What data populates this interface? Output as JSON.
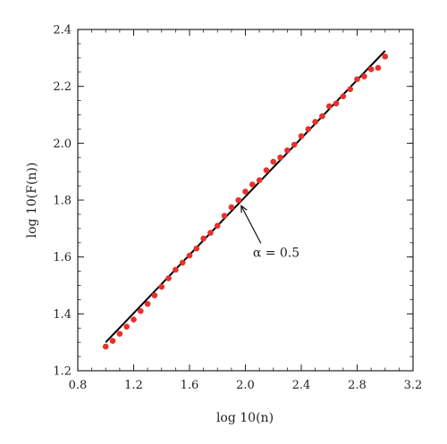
{
  "chart_data": {
    "type": "scatter",
    "title": "",
    "xlabel": "log 10(n)",
    "ylabel": "log 10(F(n))",
    "xlim": [
      0.8,
      3.2
    ],
    "ylim": [
      1.2,
      2.4
    ],
    "xticks": [
      "0.8",
      "1.2",
      "1.6",
      "2.0",
      "2.4",
      "2.8",
      "3.2"
    ],
    "yticks": [
      "1.2",
      "1.4",
      "1.6",
      "1.8",
      "2.0",
      "2.2",
      "2.4"
    ],
    "grid": false,
    "colors": {
      "points": "#e8312a",
      "line": "#000000"
    },
    "series": [
      {
        "values_xy": [
          [
            1.0,
            1.285
          ],
          [
            1.05,
            1.305
          ],
          [
            1.1,
            1.33
          ],
          [
            1.15,
            1.355
          ],
          [
            1.2,
            1.38
          ],
          [
            1.25,
            1.41
          ],
          [
            1.3,
            1.435
          ],
          [
            1.35,
            1.465
          ],
          [
            1.4,
            1.495
          ],
          [
            1.45,
            1.525
          ],
          [
            1.5,
            1.555
          ],
          [
            1.55,
            1.58
          ],
          [
            1.6,
            1.605
          ],
          [
            1.65,
            1.63
          ],
          [
            1.7,
            1.665
          ],
          [
            1.75,
            1.685
          ],
          [
            1.8,
            1.71
          ],
          [
            1.85,
            1.745
          ],
          [
            1.9,
            1.775
          ],
          [
            1.95,
            1.8
          ],
          [
            2.0,
            1.83
          ],
          [
            2.05,
            1.855
          ],
          [
            2.1,
            1.87
          ],
          [
            2.15,
            1.905
          ],
          [
            2.2,
            1.935
          ],
          [
            2.25,
            1.95
          ],
          [
            2.3,
            1.975
          ],
          [
            2.35,
            1.995
          ],
          [
            2.4,
            2.025
          ],
          [
            2.45,
            2.05
          ],
          [
            2.5,
            2.075
          ],
          [
            2.55,
            2.095
          ],
          [
            2.6,
            2.13
          ],
          [
            2.65,
            2.14
          ],
          [
            2.7,
            2.165
          ],
          [
            2.75,
            2.19
          ],
          [
            2.8,
            2.225
          ],
          [
            2.85,
            2.235
          ],
          [
            2.9,
            2.26
          ],
          [
            2.95,
            2.265
          ],
          [
            3.0,
            2.305
          ]
        ]
      }
    ],
    "fit_line": {
      "x": [
        1.0,
        3.0
      ],
      "y": [
        1.3,
        2.325
      ]
    },
    "annotation": {
      "text": "α = 0.5",
      "target": [
        1.97,
        1.78
      ]
    }
  }
}
